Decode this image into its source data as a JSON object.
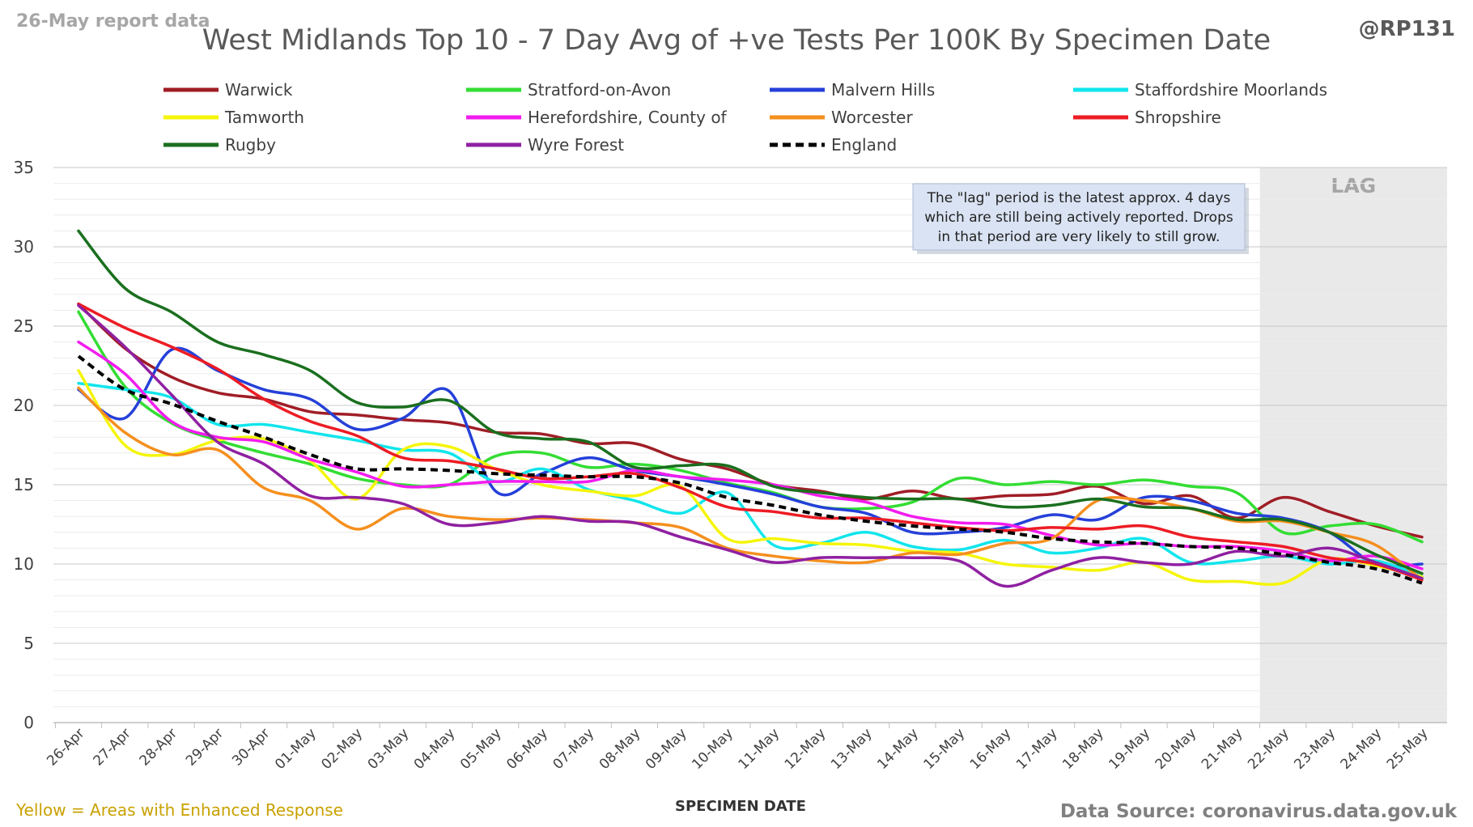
{
  "header": {
    "report_note": "26-May report data",
    "handle": "@RP131"
  },
  "footer": {
    "note": "Yellow = Areas with Enhanced Response",
    "source": "Data Source: coronavirus.data.gov.uk"
  },
  "annotation": {
    "lines": [
      "The \"lag\" period is the latest approx. 4 days",
      "which are still being actively reported.  Drops",
      "in that period are very likely to still grow."
    ]
  },
  "colors": {
    "title": "#595959",
    "report_note": "#a6a6a6",
    "handle": "#595959",
    "footnote": "#c9a100",
    "source": "#808080",
    "grid": "#d9d9d9",
    "lag_shade": "#e9e9e9",
    "lag_label": "#a6a6a6",
    "annotation_fill": "#dae3f3",
    "annotation_stroke": "#aebbd0"
  },
  "chart_data": {
    "type": "line",
    "title": "West Midlands Top 10 - 7 Day Avg of +ve Tests Per 100K By Specimen Date",
    "xlabel": "SPECIMEN DATE",
    "ylabel": "",
    "ylim": [
      0,
      35
    ],
    "yticks": [
      0,
      5,
      10,
      15,
      20,
      25,
      30,
      35
    ],
    "grid": true,
    "legend_position": "top",
    "lag_region": {
      "label": "LAG",
      "from": "22-May",
      "to": "25-May"
    },
    "x": [
      "26-Apr",
      "27-Apr",
      "28-Apr",
      "29-Apr",
      "30-Apr",
      "01-May",
      "02-May",
      "03-May",
      "04-May",
      "05-May",
      "06-May",
      "07-May",
      "08-May",
      "09-May",
      "10-May",
      "11-May",
      "12-May",
      "13-May",
      "14-May",
      "15-May",
      "16-May",
      "17-May",
      "18-May",
      "19-May",
      "20-May",
      "21-May",
      "22-May",
      "23-May",
      "24-May",
      "25-May"
    ],
    "series": [
      {
        "name": "Warwick",
        "color": "#a01d26",
        "dashed": false,
        "values": [
          26.4,
          23.6,
          21.8,
          20.8,
          20.4,
          19.6,
          19.4,
          19.1,
          18.9,
          18.3,
          18.2,
          17.6,
          17.6,
          16.6,
          16.0,
          15.0,
          14.6,
          14.1,
          14.6,
          14.1,
          14.3,
          14.4,
          14.9,
          13.8,
          14.3,
          12.9,
          14.2,
          13.3,
          12.4,
          11.7
        ]
      },
      {
        "name": "Stratford-on-Avon",
        "color": "#33dd33",
        "dashed": false,
        "values": [
          25.9,
          21.2,
          18.9,
          17.8,
          17.0,
          16.3,
          15.4,
          15.0,
          15.0,
          16.8,
          17.0,
          16.1,
          16.3,
          15.9,
          15.1,
          14.5,
          13.6,
          13.5,
          13.9,
          15.4,
          15.0,
          15.2,
          15.0,
          15.3,
          14.9,
          14.5,
          12.0,
          12.4,
          12.5,
          11.4
        ]
      },
      {
        "name": "Malvern Hills",
        "color": "#2540d9",
        "dashed": false,
        "values": [
          21.0,
          19.2,
          23.5,
          22.2,
          21.0,
          20.4,
          18.5,
          19.2,
          20.9,
          14.6,
          15.7,
          16.7,
          15.9,
          15.5,
          15.0,
          14.4,
          13.6,
          13.2,
          12.0,
          12.0,
          12.3,
          13.1,
          12.8,
          14.2,
          14.0,
          13.2,
          12.9,
          12.0,
          10.0,
          10.0
        ]
      },
      {
        "name": "Staffordshire Moorlands",
        "color": "#11e5ec",
        "dashed": false,
        "values": [
          21.4,
          21.0,
          20.5,
          18.8,
          18.8,
          18.3,
          17.8,
          17.2,
          17.0,
          15.2,
          16.0,
          14.7,
          14.0,
          13.2,
          14.5,
          11.2,
          11.3,
          12.0,
          11.1,
          10.9,
          11.5,
          10.7,
          11.0,
          11.6,
          10.1,
          10.2,
          10.5,
          10.0,
          10.2,
          9.2
        ]
      },
      {
        "name": "Tamworth",
        "color": "#f5f50a",
        "dashed": false,
        "values": [
          22.2,
          17.5,
          16.9,
          17.8,
          17.9,
          16.5,
          14.1,
          17.2,
          17.4,
          16.0,
          15.0,
          14.6,
          14.3,
          14.9,
          11.6,
          11.6,
          11.3,
          11.2,
          10.8,
          10.7,
          10.0,
          9.8,
          9.6,
          10.1,
          9.0,
          8.9,
          8.8,
          10.3,
          9.9,
          9.2
        ]
      },
      {
        "name": "Herefordshire, County of",
        "color": "#f21cef",
        "dashed": false,
        "values": [
          24.0,
          22.0,
          19.0,
          18.0,
          17.7,
          16.6,
          15.8,
          14.9,
          15.0,
          15.2,
          15.2,
          15.2,
          15.9,
          15.5,
          15.3,
          15.0,
          14.3,
          13.9,
          13.0,
          12.6,
          12.5,
          11.8,
          11.2,
          11.3,
          11.1,
          11.1,
          10.8,
          10.2,
          10.5,
          9.7
        ]
      },
      {
        "name": "Worcester",
        "color": "#f58f1e",
        "dashed": false,
        "values": [
          21.1,
          18.3,
          16.9,
          17.2,
          14.8,
          14.0,
          12.2,
          13.5,
          13.0,
          12.8,
          12.9,
          12.8,
          12.6,
          12.3,
          11.0,
          10.5,
          10.2,
          10.1,
          10.7,
          10.6,
          11.3,
          11.6,
          14.0,
          14.0,
          13.5,
          12.7,
          12.7,
          12.0,
          11.2,
          9.0
        ]
      },
      {
        "name": "Shropshire",
        "color": "#ed1c24",
        "dashed": false,
        "values": [
          26.4,
          24.9,
          23.7,
          22.3,
          20.4,
          19.0,
          18.1,
          16.7,
          16.5,
          16.0,
          15.4,
          15.5,
          15.7,
          14.8,
          13.6,
          13.3,
          12.9,
          12.9,
          12.6,
          12.3,
          12.1,
          12.3,
          12.2,
          12.4,
          11.7,
          11.4,
          11.1,
          10.4,
          10.0,
          9.0
        ]
      },
      {
        "name": "Rugby",
        "color": "#1a6f1e",
        "dashed": false,
        "values": [
          31.0,
          27.4,
          25.9,
          24.0,
          23.2,
          22.2,
          20.2,
          19.9,
          20.3,
          18.3,
          17.9,
          17.7,
          16.1,
          16.2,
          16.2,
          14.9,
          14.5,
          14.2,
          14.1,
          14.1,
          13.6,
          13.7,
          14.1,
          13.6,
          13.5,
          12.8,
          12.8,
          12.0,
          10.6,
          9.4
        ]
      },
      {
        "name": "Wyre Forest",
        "color": "#8f20a1",
        "dashed": false,
        "values": [
          26.3,
          23.7,
          20.7,
          17.7,
          16.3,
          14.3,
          14.2,
          13.8,
          12.5,
          12.6,
          13.0,
          12.7,
          12.6,
          11.7,
          10.9,
          10.1,
          10.4,
          10.4,
          10.4,
          10.2,
          8.6,
          9.6,
          10.4,
          10.1,
          10.0,
          10.8,
          10.5,
          11.0,
          10.1,
          9.1
        ]
      },
      {
        "name": "England",
        "color": "#000000",
        "dashed": true,
        "values": [
          23.1,
          21.0,
          20.1,
          19.0,
          18.0,
          16.9,
          16.0,
          16.0,
          15.9,
          15.7,
          15.6,
          15.5,
          15.5,
          15.1,
          14.2,
          13.7,
          13.1,
          12.7,
          12.4,
          12.2,
          12.0,
          11.6,
          11.4,
          11.3,
          11.1,
          11.0,
          10.6,
          10.1,
          9.7,
          8.8
        ]
      }
    ]
  }
}
